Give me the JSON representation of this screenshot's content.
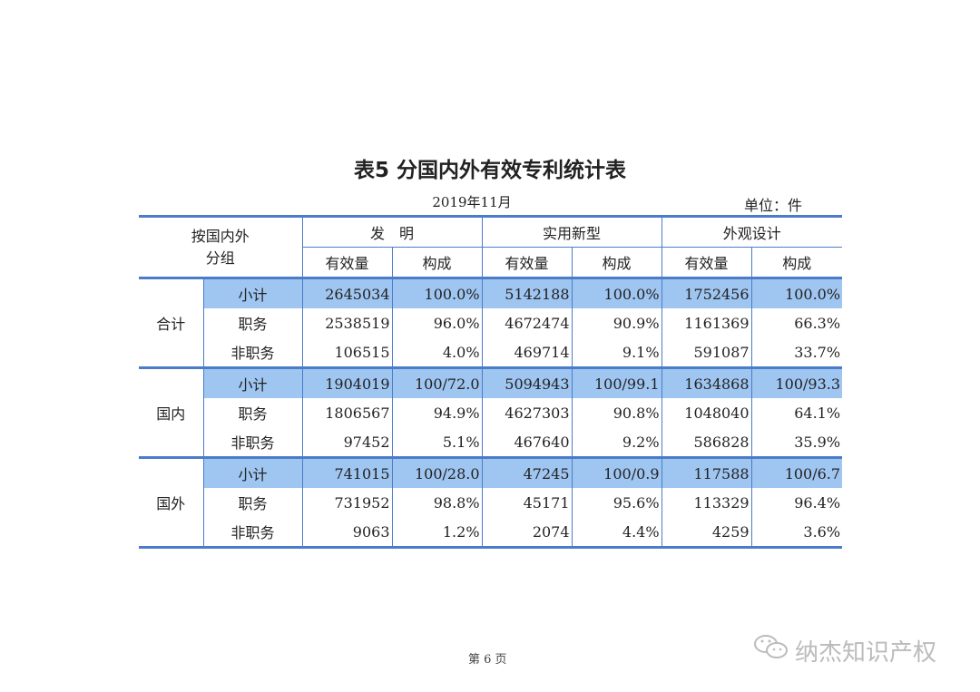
{
  "title": "表5  分国内外有效专利统计表",
  "date": "2019年11月",
  "unit": "单位：件",
  "header": {
    "group": "按国内外\n分组",
    "group_l1": "按国内外",
    "group_l2": "分组",
    "categories": [
      "发　明",
      "实用新型",
      "外观设计"
    ],
    "sub": [
      "有效量",
      "构成"
    ]
  },
  "groups": [
    {
      "name": "合计",
      "rows": [
        {
          "label": "小计",
          "values": [
            "2645034",
            "100.0%",
            "5142188",
            "100.0%",
            "1752456",
            "100.0%"
          ]
        },
        {
          "label": "职务",
          "values": [
            "2538519",
            "96.0%",
            "4672474",
            "90.9%",
            "1161369",
            "66.3%"
          ]
        },
        {
          "label": "非职务",
          "values": [
            "106515",
            "4.0%",
            "469714",
            "9.1%",
            "591087",
            "33.7%"
          ]
        }
      ]
    },
    {
      "name": "国内",
      "rows": [
        {
          "label": "小计",
          "values": [
            "1904019",
            "100/72.0",
            "5094943",
            "100/99.1",
            "1634868",
            "100/93.3"
          ]
        },
        {
          "label": "职务",
          "values": [
            "1806567",
            "94.9%",
            "4627303",
            "90.8%",
            "1048040",
            "64.1%"
          ]
        },
        {
          "label": "非职务",
          "values": [
            "97452",
            "5.1%",
            "467640",
            "9.2%",
            "586828",
            "35.9%"
          ]
        }
      ]
    },
    {
      "name": "国外",
      "rows": [
        {
          "label": "小计",
          "values": [
            "741015",
            "100/28.0",
            "47245",
            "100/0.9",
            "117588",
            "100/6.7"
          ]
        },
        {
          "label": "职务",
          "values": [
            "731952",
            "98.8%",
            "45171",
            "95.6%",
            "113329",
            "96.4%"
          ]
        },
        {
          "label": "非职务",
          "values": [
            "9063",
            "1.2%",
            "2074",
            "4.4%",
            "4259",
            "3.6%"
          ]
        }
      ]
    }
  ],
  "footer": {
    "page": "第 6 页",
    "watermark": "纳杰知识产权"
  },
  "colors": {
    "highlight": "#9fc5f1",
    "rule": "#4a7cc9"
  }
}
